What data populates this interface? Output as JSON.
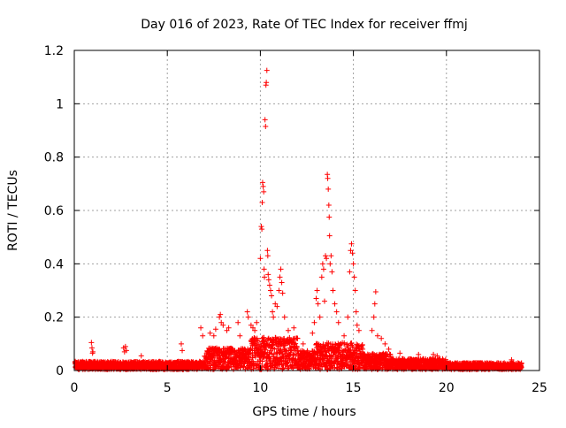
{
  "chart_data": {
    "type": "scatter",
    "title": "Day 016 of 2023, Rate Of TEC Index for receiver ffmj",
    "xlabel": "GPS time / hours",
    "ylabel": "ROTI / TECUs",
    "xlim": [
      0,
      25
    ],
    "ylim": [
      0,
      1.2
    ],
    "xticks": [
      0,
      5,
      10,
      15,
      20,
      25
    ],
    "xtick_labels": [
      "0",
      "5",
      "10",
      "15",
      "20",
      "25"
    ],
    "yticks": [
      0,
      0.2,
      0.4,
      0.6,
      0.8,
      1.0,
      1.2
    ],
    "ytick_labels": [
      "0",
      "0.2",
      "0.4",
      "0.6",
      "0.8",
      "1",
      "1.2"
    ],
    "grid": true,
    "marker": "plus",
    "color": "#ff0000",
    "series": [
      {
        "name": "",
        "outliers": [
          [
            0.92,
            0.105
          ],
          [
            0.95,
            0.085
          ],
          [
            0.98,
            0.065
          ],
          [
            1.0,
            0.07
          ],
          [
            2.65,
            0.085
          ],
          [
            2.7,
            0.07
          ],
          [
            2.75,
            0.09
          ],
          [
            2.8,
            0.075
          ],
          [
            3.6,
            0.055
          ],
          [
            5.75,
            0.1
          ],
          [
            5.8,
            0.075
          ],
          [
            6.8,
            0.16
          ],
          [
            6.9,
            0.13
          ],
          [
            7.3,
            0.14
          ],
          [
            7.5,
            0.13
          ],
          [
            7.6,
            0.155
          ],
          [
            7.8,
            0.2
          ],
          [
            7.85,
            0.21
          ],
          [
            7.9,
            0.18
          ],
          [
            8.0,
            0.17
          ],
          [
            8.2,
            0.15
          ],
          [
            8.3,
            0.16
          ],
          [
            8.8,
            0.18
          ],
          [
            8.9,
            0.13
          ],
          [
            9.3,
            0.22
          ],
          [
            9.35,
            0.2
          ],
          [
            9.5,
            0.17
          ],
          [
            9.6,
            0.16
          ],
          [
            9.7,
            0.15
          ],
          [
            9.8,
            0.18
          ],
          [
            10.0,
            0.42
          ],
          [
            10.05,
            0.54
          ],
          [
            10.08,
            0.53
          ],
          [
            10.1,
            0.63
          ],
          [
            10.12,
            0.705
          ],
          [
            10.15,
            0.69
          ],
          [
            10.18,
            0.67
          ],
          [
            10.2,
            0.38
          ],
          [
            10.22,
            0.35
          ],
          [
            10.25,
            0.94
          ],
          [
            10.28,
            0.915
          ],
          [
            10.3,
            1.07
          ],
          [
            10.32,
            1.08
          ],
          [
            10.35,
            1.125
          ],
          [
            10.38,
            0.45
          ],
          [
            10.4,
            0.43
          ],
          [
            10.42,
            0.36
          ],
          [
            10.45,
            0.34
          ],
          [
            10.5,
            0.32
          ],
          [
            10.55,
            0.3
          ],
          [
            10.6,
            0.28
          ],
          [
            10.65,
            0.22
          ],
          [
            10.7,
            0.2
          ],
          [
            10.8,
            0.25
          ],
          [
            10.9,
            0.24
          ],
          [
            11.0,
            0.3
          ],
          [
            11.05,
            0.35
          ],
          [
            11.1,
            0.38
          ],
          [
            11.15,
            0.33
          ],
          [
            11.2,
            0.29
          ],
          [
            11.3,
            0.2
          ],
          [
            11.5,
            0.15
          ],
          [
            11.8,
            0.16
          ],
          [
            12.0,
            0.12
          ],
          [
            12.3,
            0.1
          ],
          [
            12.8,
            0.14
          ],
          [
            12.9,
            0.18
          ],
          [
            13.0,
            0.27
          ],
          [
            13.05,
            0.3
          ],
          [
            13.1,
            0.25
          ],
          [
            13.2,
            0.2
          ],
          [
            13.3,
            0.35
          ],
          [
            13.35,
            0.4
          ],
          [
            13.4,
            0.38
          ],
          [
            13.45,
            0.26
          ],
          [
            13.5,
            0.43
          ],
          [
            13.55,
            0.42
          ],
          [
            13.6,
            0.735
          ],
          [
            13.62,
            0.72
          ],
          [
            13.65,
            0.68
          ],
          [
            13.68,
            0.62
          ],
          [
            13.7,
            0.575
          ],
          [
            13.72,
            0.505
          ],
          [
            13.75,
            0.4
          ],
          [
            13.8,
            0.43
          ],
          [
            13.85,
            0.37
          ],
          [
            13.9,
            0.3
          ],
          [
            14.0,
            0.25
          ],
          [
            14.1,
            0.22
          ],
          [
            14.2,
            0.18
          ],
          [
            14.5,
            0.13
          ],
          [
            14.7,
            0.2
          ],
          [
            14.8,
            0.37
          ],
          [
            14.85,
            0.45
          ],
          [
            14.9,
            0.475
          ],
          [
            14.95,
            0.44
          ],
          [
            15.0,
            0.4
          ],
          [
            15.05,
            0.35
          ],
          [
            15.1,
            0.3
          ],
          [
            15.15,
            0.22
          ],
          [
            15.2,
            0.17
          ],
          [
            15.3,
            0.15
          ],
          [
            15.5,
            0.08
          ],
          [
            16.0,
            0.15
          ],
          [
            16.1,
            0.2
          ],
          [
            16.15,
            0.25
          ],
          [
            16.2,
            0.295
          ],
          [
            16.3,
            0.13
          ],
          [
            16.5,
            0.12
          ],
          [
            16.7,
            0.1
          ],
          [
            16.9,
            0.08
          ],
          [
            17.5,
            0.065
          ],
          [
            18.5,
            0.06
          ],
          [
            19.3,
            0.06
          ],
          [
            19.5,
            0.055
          ],
          [
            23.5,
            0.04
          ]
        ]
      }
    ]
  }
}
